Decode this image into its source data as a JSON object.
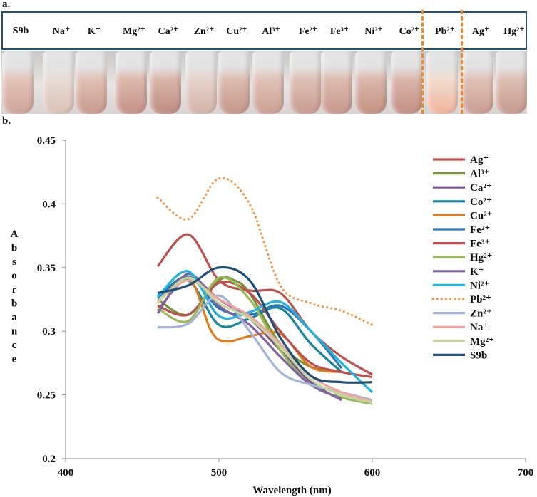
{
  "panel_a": {
    "label": "a.",
    "ions": [
      "S9b",
      "Na⁺",
      "K⁺",
      "Mg²⁺",
      "Ca²⁺",
      "Zn²⁺",
      "Cu²⁺",
      "Al³⁺",
      "Fe²⁺",
      "Fe³⁺",
      "Ni²⁺",
      "Co²⁺",
      "Pb²⁺",
      "Ag⁺",
      "Hg²⁺"
    ],
    "highlighted_ion": "Pb²⁺",
    "highlight_color": "#f08a24"
  },
  "panel_b": {
    "label": "b."
  },
  "chart_data": {
    "type": "line",
    "title": "",
    "xlabel": "Wavelength (nm)",
    "ylabel": "Absorbance",
    "xlim": [
      400,
      700
    ],
    "ylim": [
      0.2,
      0.45
    ],
    "xticks": [
      400,
      500,
      600,
      700
    ],
    "yticks": [
      0.2,
      0.25,
      0.3,
      0.35,
      0.4,
      0.45
    ],
    "ytick_labels": [
      "0.2",
      "0.25",
      "0.3",
      "0.35",
      "0.4",
      "0.45"
    ],
    "grid": false,
    "legend_position": "right",
    "series": [
      {
        "name": "Ag⁺",
        "color": "#c0504d",
        "dash": "solid",
        "x": [
          460,
          480,
          500,
          520,
          540,
          560,
          580,
          600
        ],
        "y": [
          0.351,
          0.376,
          0.34,
          0.332,
          0.33,
          0.3,
          0.28,
          0.266
        ]
      },
      {
        "name": "Al³⁺",
        "color": "#77933c",
        "dash": "solid",
        "x": [
          460,
          480,
          500,
          510,
          520,
          540,
          560,
          580
        ],
        "y": [
          0.325,
          0.313,
          0.34,
          0.34,
          0.33,
          0.29,
          0.272,
          0.268
        ]
      },
      {
        "name": "Ca²⁺",
        "color": "#7a4f9e",
        "dash": "solid",
        "x": [
          460,
          480,
          500,
          520,
          540,
          560,
          580
        ],
        "y": [
          0.316,
          0.342,
          0.325,
          0.31,
          0.285,
          0.26,
          0.246
        ]
      },
      {
        "name": "Co²⁺",
        "color": "#17869e",
        "dash": "solid",
        "x": [
          460,
          480,
          500,
          520,
          540,
          560,
          580
        ],
        "y": [
          0.328,
          0.34,
          0.305,
          0.31,
          0.318,
          0.29,
          0.268
        ]
      },
      {
        "name": "Cu²⁺",
        "color": "#e07c1a",
        "dash": "solid",
        "x": [
          460,
          480,
          495,
          505,
          520,
          540,
          560,
          580
        ],
        "y": [
          0.322,
          0.342,
          0.3,
          0.292,
          0.296,
          0.298,
          0.272,
          0.268
        ]
      },
      {
        "name": "Fe²⁺",
        "color": "#2e75b6",
        "dash": "solid",
        "x": [
          460,
          480,
          500,
          520,
          540,
          560,
          580
        ],
        "y": [
          0.326,
          0.343,
          0.318,
          0.313,
          0.32,
          0.3,
          0.271
        ]
      },
      {
        "name": "Fe³⁺",
        "color": "#c0504d",
        "dash": "solid",
        "x": [
          460,
          480,
          500,
          520,
          540,
          560,
          580,
          600
        ],
        "y": [
          0.32,
          0.313,
          0.338,
          0.33,
          0.3,
          0.275,
          0.268,
          0.264
        ]
      },
      {
        "name": "Hg²⁺",
        "color": "#9bbb59",
        "dash": "solid",
        "x": [
          460,
          480,
          500,
          520,
          540,
          560,
          580,
          600
        ],
        "y": [
          0.318,
          0.308,
          0.342,
          0.325,
          0.285,
          0.258,
          0.248,
          0.243
        ]
      },
      {
        "name": "K⁺",
        "color": "#8064a2",
        "dash": "solid",
        "x": [
          460,
          480,
          500,
          520,
          540,
          560,
          580
        ],
        "y": [
          0.314,
          0.345,
          0.32,
          0.305,
          0.28,
          0.258,
          0.247
        ]
      },
      {
        "name": "Ni²⁺",
        "color": "#1fb4e0",
        "dash": "solid",
        "x": [
          460,
          480,
          500,
          520,
          540,
          560,
          580,
          600
        ],
        "y": [
          0.327,
          0.347,
          0.312,
          0.315,
          0.323,
          0.3,
          0.275,
          0.252
        ]
      },
      {
        "name": "Pb²⁺",
        "color": "#f79646",
        "dash": "dotted",
        "x": [
          460,
          480,
          500,
          520,
          540,
          560,
          580,
          600
        ],
        "y": [
          0.405,
          0.388,
          0.42,
          0.4,
          0.336,
          0.322,
          0.316,
          0.305
        ]
      },
      {
        "name": "Zn²⁺",
        "color": "#a5b4d6",
        "dash": "solid",
        "x": [
          460,
          480,
          500,
          520,
          540,
          560,
          580,
          600
        ],
        "y": [
          0.303,
          0.306,
          0.328,
          0.3,
          0.268,
          0.258,
          0.252,
          0.246
        ]
      },
      {
        "name": "Na⁺",
        "color": "#f2a5a0",
        "dash": "solid",
        "x": [
          460,
          480,
          500,
          520,
          540,
          560,
          580,
          600
        ],
        "y": [
          0.323,
          0.34,
          0.325,
          0.312,
          0.29,
          0.265,
          0.252,
          0.245
        ]
      },
      {
        "name": "Mg²⁺",
        "color": "#c3d69b",
        "dash": "solid",
        "x": [
          460,
          480,
          500,
          520,
          540,
          560,
          580,
          600
        ],
        "y": [
          0.322,
          0.342,
          0.322,
          0.31,
          0.288,
          0.262,
          0.25,
          0.244
        ]
      },
      {
        "name": "S9b",
        "color": "#1f4e79",
        "dash": "solid",
        "x": [
          460,
          480,
          500,
          520,
          540,
          560,
          580,
          600
        ],
        "y": [
          0.33,
          0.336,
          0.35,
          0.34,
          0.295,
          0.265,
          0.26,
          0.26
        ]
      }
    ]
  }
}
